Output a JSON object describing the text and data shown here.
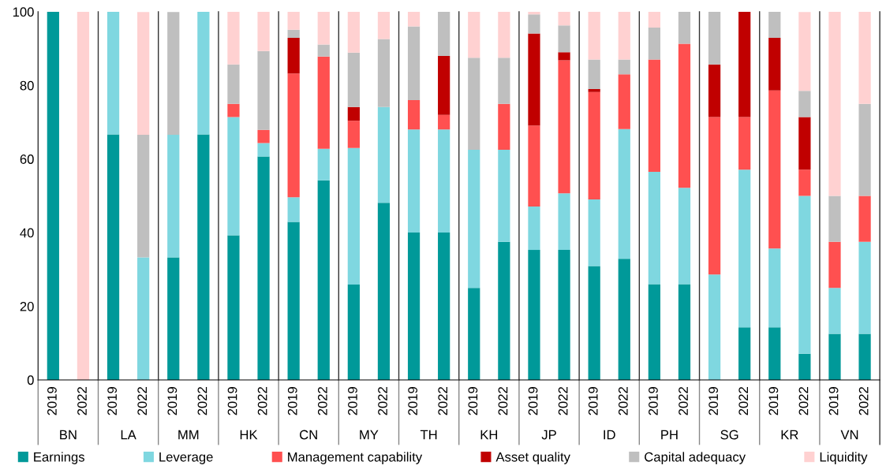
{
  "chart_data": {
    "type": "bar",
    "stacked": true,
    "categories": [
      "2019",
      "2022",
      "2019",
      "2022",
      "2019",
      "2022",
      "2019",
      "2022",
      "2019",
      "2022",
      "2019",
      "2022",
      "2019",
      "2022",
      "2019",
      "2022",
      "2019",
      "2022",
      "2019",
      "2022",
      "2019",
      "2022",
      "2019",
      "2022",
      "2019",
      "2022",
      "2019",
      "2022"
    ],
    "annotations": [
      "BN",
      "LA",
      "MM",
      "HK",
      "CN",
      "MY",
      "TH",
      "KH",
      "JP",
      "ID",
      "PH",
      "SG",
      "KR",
      "VN"
    ],
    "ylim": [
      0,
      100
    ],
    "yticks": [
      0,
      20,
      40,
      60,
      80,
      100
    ],
    "grid": false,
    "legend": "bottom",
    "series": [
      {
        "name": "Earnings",
        "color": "#009999",
        "values": [
          100,
          0,
          66.7,
          0,
          33.3,
          66.7,
          39.3,
          60.7,
          42.9,
          54.2,
          25.9,
          48.1,
          40,
          40,
          25,
          37.5,
          35.3,
          35.3,
          30.9,
          32.9,
          26,
          26,
          0,
          14.3,
          14.3,
          7.1,
          12.5,
          12.5
        ]
      },
      {
        "name": "Leverage",
        "color": "#7fd7e0",
        "values": [
          0,
          0,
          33.3,
          33.3,
          33.3,
          33.3,
          32.1,
          3.6,
          6.7,
          8.6,
          37.1,
          26,
          28,
          28,
          37.5,
          25,
          11.8,
          15.4,
          18.1,
          35.2,
          30.5,
          26.2,
          28.6,
          42.8,
          21.4,
          42.9,
          12.5,
          25
        ]
      },
      {
        "name": "Management capability",
        "color": "#ff5050",
        "values": [
          0,
          0,
          0,
          0,
          0,
          0,
          3.6,
          3.6,
          33.6,
          25,
          7.4,
          0,
          8,
          4,
          0,
          12.5,
          22,
          36.1,
          29.2,
          14.9,
          30.5,
          39.1,
          42.8,
          14.3,
          42.9,
          7.1,
          12.5,
          12.5
        ]
      },
      {
        "name": "Asset quality",
        "color": "#c00000",
        "values": [
          0,
          0,
          0,
          0,
          0,
          0,
          0,
          0,
          9.7,
          0,
          3.7,
          0,
          0,
          16,
          0,
          0,
          25,
          2.2,
          0.8,
          0,
          0,
          0,
          14.3,
          28.6,
          14.3,
          14.3,
          0,
          0
        ]
      },
      {
        "name": "Capital adequacy",
        "color": "#bfbfbf",
        "values": [
          0,
          0,
          0,
          33.3,
          33.3,
          0,
          10.7,
          21.4,
          2.2,
          3.3,
          14.8,
          18.5,
          20,
          12,
          25,
          12.5,
          5.2,
          7.3,
          8,
          4,
          8.7,
          8.7,
          14.3,
          0,
          7.1,
          7.1,
          12.5,
          25
        ]
      },
      {
        "name": "Liquidity",
        "color": "#ffd1d1",
        "values": [
          0,
          100,
          0,
          33.3,
          0,
          0,
          14.3,
          10.7,
          4.9,
          8.9,
          11.1,
          7.4,
          4,
          0,
          12.5,
          12.5,
          0.7,
          3.7,
          13,
          13,
          4.3,
          0,
          0,
          0,
          0,
          21.4,
          50,
          25
        ]
      }
    ]
  }
}
